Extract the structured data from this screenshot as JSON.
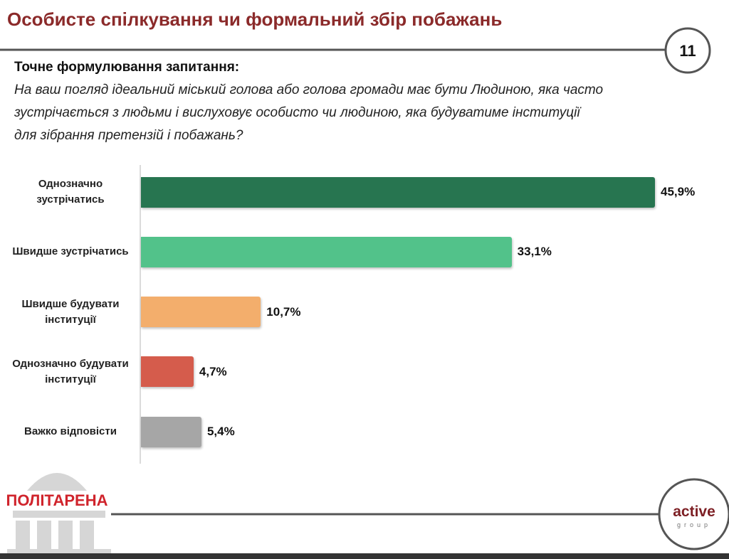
{
  "header": {
    "title": "Особисте спілкування чи формальний збір побажань",
    "page_number": "11"
  },
  "question": {
    "label": "Точне формулювання запитання:",
    "lines": [
      "На ваш погляд ідеальний міський голова або голова громади має бути Людиною, яка часто",
      "зустрічається з людьми і вислуховує особисто чи людиною, яка будуватиме інституції",
      "для зібрання претензій і побажань?"
    ]
  },
  "chart_data": {
    "type": "bar",
    "orientation": "horizontal",
    "categories": [
      "Однозначно зустрічатись",
      "Швидше зустрічатись",
      "Швидше будувати інституції",
      "Однозначно будувати інституції",
      "Важко відповісти"
    ],
    "values": [
      45.9,
      33.1,
      10.7,
      4.7,
      5.4
    ],
    "value_labels": [
      "45,9%",
      "33,1%",
      "10,7%",
      "4,7%",
      "5,4%"
    ],
    "colors": [
      "#277550",
      "#52c28a",
      "#f3ae6c",
      "#d55c4c",
      "#a6a6a6"
    ]
  },
  "logos": {
    "left": "ПОЛІТАРЕНА",
    "right": "active",
    "right_sub": "group"
  }
}
